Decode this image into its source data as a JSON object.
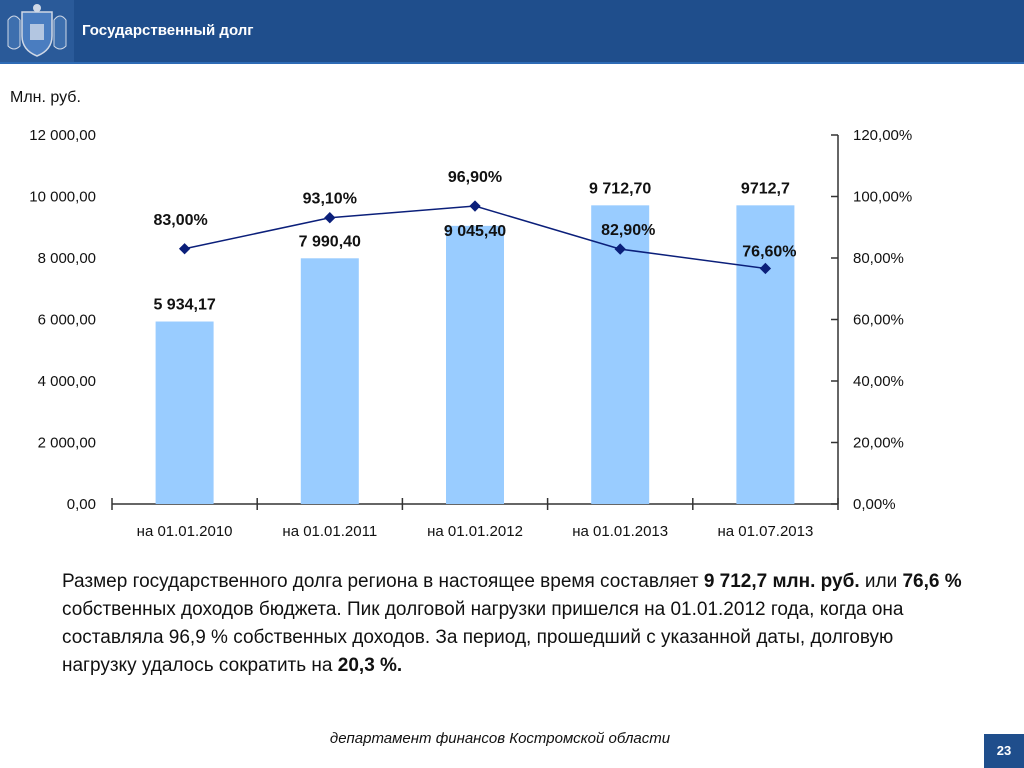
{
  "header": {
    "title": "Государственный долг"
  },
  "chart_data": {
    "type": "bar",
    "categories": [
      "на 01.01.2010",
      "на 01.01.2011",
      "на 01.01.2012",
      "на 01.01.2013",
      "на 01.07.2013"
    ],
    "unit_label": "Млн. руб.",
    "series": [
      {
        "values": [
          5934.17,
          7990.4,
          9045.4,
          9712.7,
          9712.7
        ],
        "labels": [
          "5 934,17",
          "7 990,40",
          "9 045,40",
          "9 712,70",
          "9712,7"
        ]
      },
      {
        "type": "line",
        "values": [
          83.0,
          93.1,
          96.9,
          82.9,
          76.6
        ],
        "labels": [
          "83,00%",
          "93,10%",
          "96,90%",
          "82,90%",
          "76,60%"
        ]
      }
    ],
    "ylim": [
      0,
      12000
    ],
    "y2lim": [
      0,
      120
    ],
    "yticks": [
      "0,00",
      "2 000,00",
      "4 000,00",
      "6 000,00",
      "8 000,00",
      "10 000,00",
      "12 000,00"
    ],
    "y2ticks": [
      "0,00%",
      "20,00%",
      "40,00%",
      "60,00%",
      "80,00%",
      "100,00%",
      "120,00%"
    ],
    "grid": false,
    "legend": "none",
    "colors": {
      "bar": "#99ccff",
      "line": "#0b1f7a",
      "marker": "#0b1f7a"
    }
  },
  "description": [
    {
      "text": "Размер государственного долга региона в настоящее время составляет ",
      "bold": false
    },
    {
      "text": "9 712,7 млн. руб.",
      "bold": true
    },
    {
      "text": " или ",
      "bold": false
    },
    {
      "text": "76,6 %",
      "bold": true
    },
    {
      "text": " собственных доходов бюджета. Пик долговой нагрузки пришелся на 01.01.2012 года, когда она составляла 96,9 % собственных доходов. За период, прошедший с указанной даты, долговую нагрузку удалось сократить на ",
      "bold": false
    },
    {
      "text": "20,3 %.",
      "bold": true
    }
  ],
  "footer": {
    "text": "департамент финансов  Костромской области",
    "page": "23"
  }
}
